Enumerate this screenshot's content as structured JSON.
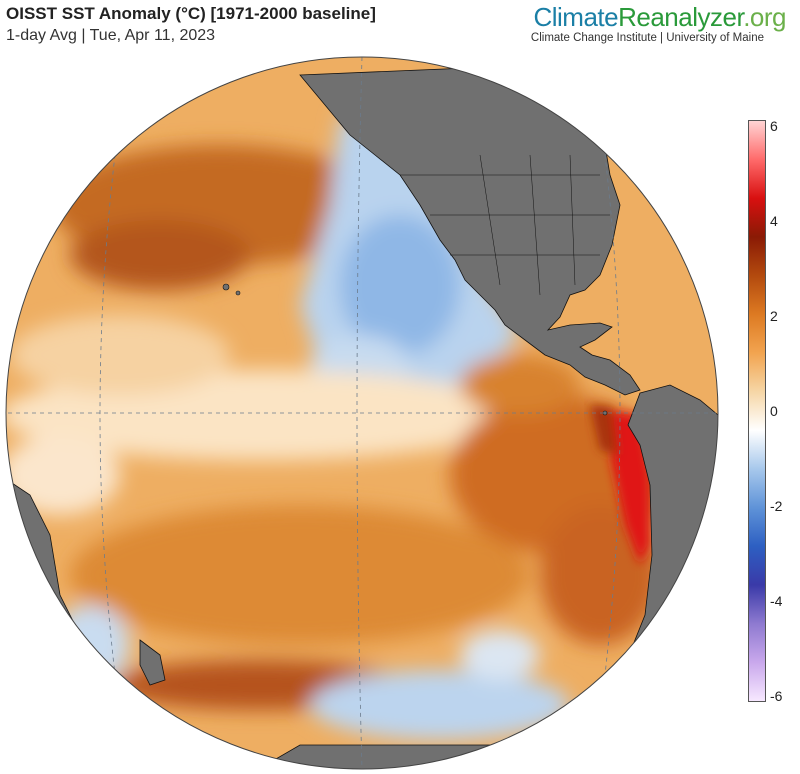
{
  "header": {
    "title": "OISST SST Anomaly (°C) [1971-2000 baseline]",
    "subtitle": "1-day Avg | Tue, Apr 11, 2023",
    "brand_part1": "Climate",
    "brand_part2": "Reanalyzer",
    "brand_part3": ".org",
    "brand_sub": "Climate Change Institute | University of Maine"
  },
  "colorbar": {
    "ticks": [
      "6",
      "4",
      "2",
      "0",
      "-2",
      "-4",
      "-6"
    ],
    "colors": [
      "#f7e8ff",
      "#c9a8ec",
      "#8e7ad0",
      "#3a3aa8",
      "#2d5fc2",
      "#5f93d8",
      "#a7c8ec",
      "#ffffff",
      "#f6d6a6",
      "#f2a450",
      "#dd7a22",
      "#b34a0e",
      "#8a1a05",
      "#d81010",
      "#ff6a6a",
      "#ffd4d4"
    ]
  },
  "map": {
    "ocean_colors": {
      "warm": "#e8993f",
      "warmer": "#c8661c",
      "hot": "#9a2c0a",
      "extreme": "#e01818",
      "neutral": "#fbe6c8",
      "cool": "#a9cbed",
      "cooler": "#6f9fd9"
    },
    "land_color": "#707070",
    "icon": "globe-orthographic"
  }
}
